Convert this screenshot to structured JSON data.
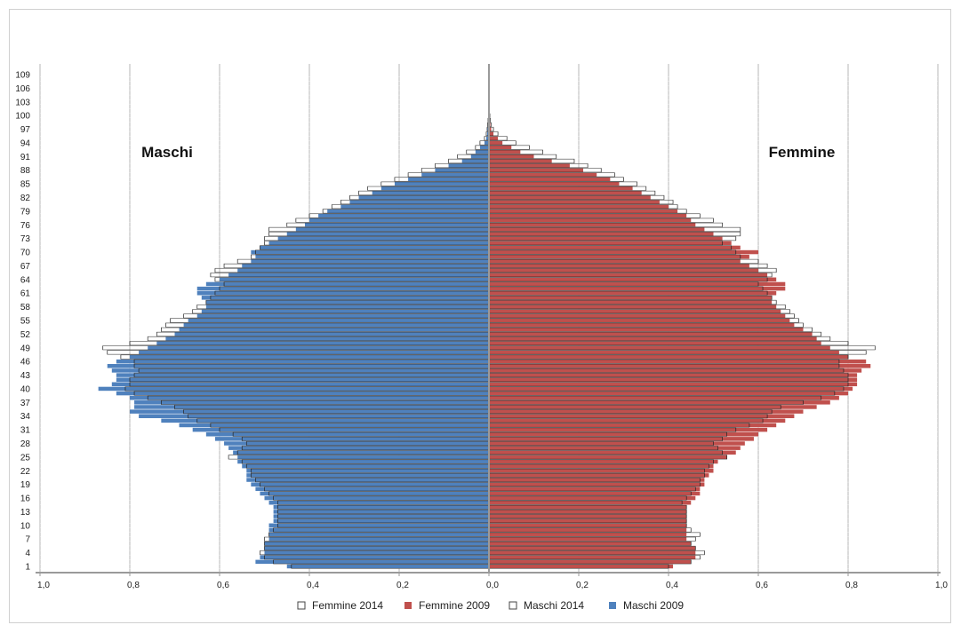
{
  "chart_data": {
    "type": "bar",
    "orientation": "horizontal",
    "subtype": "population-pyramid",
    "left_label": "Maschi",
    "right_label": "Femmine",
    "ages": [
      1,
      2,
      3,
      4,
      5,
      6,
      7,
      8,
      9,
      10,
      11,
      12,
      13,
      14,
      15,
      16,
      17,
      18,
      19,
      20,
      21,
      22,
      23,
      24,
      25,
      26,
      27,
      28,
      29,
      30,
      31,
      32,
      33,
      34,
      35,
      36,
      37,
      38,
      39,
      40,
      41,
      42,
      43,
      44,
      45,
      46,
      47,
      48,
      49,
      50,
      51,
      52,
      53,
      54,
      55,
      56,
      57,
      58,
      59,
      60,
      61,
      62,
      63,
      64,
      65,
      66,
      67,
      68,
      69,
      70,
      71,
      72,
      73,
      74,
      75,
      76,
      77,
      78,
      79,
      80,
      81,
      82,
      83,
      84,
      85,
      86,
      87,
      88,
      89,
      90,
      91,
      92,
      93,
      94,
      95,
      96,
      97,
      98,
      99,
      100,
      101,
      102,
      103,
      104,
      105,
      106,
      107,
      108,
      109
    ],
    "y_tick_labels": [
      "1",
      "4",
      "7",
      "10",
      "13",
      "16",
      "19",
      "22",
      "25",
      "28",
      "31",
      "34",
      "37",
      "40",
      "43",
      "46",
      "49",
      "52",
      "55",
      "58",
      "61",
      "64",
      "67",
      "70",
      "73",
      "76",
      "79",
      "82",
      "85",
      "88",
      "91",
      "94",
      "97",
      "100",
      "103",
      "106",
      "109"
    ],
    "x_tick_labels": [
      "1,0",
      "0,8",
      "0,6",
      "0,4",
      "0,2",
      "0,0",
      "0,2",
      "0,4",
      "0,6",
      "0,8",
      "1,0"
    ],
    "xlim": [
      -1.0,
      1.0
    ],
    "series": [
      {
        "name": "Femmine 2014",
        "side": "right",
        "style": "outline",
        "values": [
          0.4,
          0.45,
          0.47,
          0.48,
          0.46,
          0.45,
          0.46,
          0.47,
          0.45,
          0.44,
          0.44,
          0.44,
          0.44,
          0.44,
          0.43,
          0.44,
          0.45,
          0.46,
          0.47,
          0.47,
          0.48,
          0.48,
          0.49,
          0.5,
          0.53,
          0.52,
          0.51,
          0.5,
          0.52,
          0.53,
          0.55,
          0.58,
          0.61,
          0.62,
          0.63,
          0.65,
          0.7,
          0.74,
          0.77,
          0.79,
          0.8,
          0.8,
          0.8,
          0.79,
          0.78,
          0.78,
          0.8,
          0.84,
          0.86,
          0.8,
          0.76,
          0.74,
          0.72,
          0.7,
          0.69,
          0.68,
          0.67,
          0.66,
          0.64,
          0.63,
          0.62,
          0.61,
          0.6,
          0.62,
          0.63,
          0.64,
          0.62,
          0.6,
          0.56,
          0.55,
          0.54,
          0.52,
          0.55,
          0.56,
          0.56,
          0.52,
          0.5,
          0.47,
          0.44,
          0.42,
          0.41,
          0.39,
          0.37,
          0.35,
          0.33,
          0.3,
          0.28,
          0.25,
          0.22,
          0.19,
          0.15,
          0.12,
          0.09,
          0.06,
          0.04,
          0.02,
          0.01,
          0.005,
          0.003,
          0.002,
          0.001,
          0.001,
          0.0,
          0.0,
          0.0,
          0.0,
          0.0,
          0.0,
          0.0
        ]
      },
      {
        "name": "Femmine 2009",
        "side": "right",
        "style": "fill",
        "color": "#c0504d",
        "values": [
          0.41,
          0.45,
          0.46,
          0.46,
          0.46,
          0.45,
          0.44,
          0.44,
          0.44,
          0.44,
          0.44,
          0.44,
          0.44,
          0.44,
          0.45,
          0.46,
          0.47,
          0.47,
          0.48,
          0.48,
          0.49,
          0.5,
          0.5,
          0.51,
          0.53,
          0.55,
          0.56,
          0.57,
          0.59,
          0.6,
          0.62,
          0.64,
          0.66,
          0.68,
          0.7,
          0.73,
          0.76,
          0.78,
          0.8,
          0.81,
          0.82,
          0.82,
          0.82,
          0.83,
          0.85,
          0.84,
          0.8,
          0.78,
          0.76,
          0.74,
          0.73,
          0.72,
          0.7,
          0.68,
          0.67,
          0.66,
          0.65,
          0.64,
          0.63,
          0.63,
          0.64,
          0.66,
          0.66,
          0.64,
          0.62,
          0.6,
          0.58,
          0.56,
          0.58,
          0.6,
          0.56,
          0.54,
          0.52,
          0.5,
          0.48,
          0.46,
          0.45,
          0.44,
          0.42,
          0.4,
          0.38,
          0.36,
          0.34,
          0.32,
          0.29,
          0.27,
          0.24,
          0.21,
          0.18,
          0.14,
          0.1,
          0.07,
          0.05,
          0.03,
          0.02,
          0.01,
          0.005,
          0.003,
          0.002,
          0.001,
          0.001,
          0.0,
          0.0,
          0.0,
          0.0,
          0.0,
          0.0,
          0.0,
          0.0
        ]
      },
      {
        "name": "Maschi 2014",
        "side": "left",
        "style": "outline",
        "values": [
          0.44,
          0.48,
          0.5,
          0.51,
          0.5,
          0.5,
          0.5,
          0.49,
          0.48,
          0.47,
          0.47,
          0.47,
          0.47,
          0.47,
          0.47,
          0.48,
          0.49,
          0.5,
          0.51,
          0.52,
          0.53,
          0.53,
          0.54,
          0.55,
          0.58,
          0.56,
          0.55,
          0.54,
          0.55,
          0.57,
          0.6,
          0.62,
          0.65,
          0.67,
          0.68,
          0.7,
          0.73,
          0.76,
          0.79,
          0.81,
          0.8,
          0.8,
          0.79,
          0.78,
          0.79,
          0.79,
          0.82,
          0.85,
          0.86,
          0.8,
          0.76,
          0.74,
          0.73,
          0.72,
          0.71,
          0.68,
          0.66,
          0.65,
          0.63,
          0.62,
          0.61,
          0.6,
          0.59,
          0.61,
          0.62,
          0.61,
          0.59,
          0.56,
          0.53,
          0.52,
          0.51,
          0.5,
          0.5,
          0.49,
          0.49,
          0.45,
          0.43,
          0.4,
          0.37,
          0.35,
          0.33,
          0.31,
          0.29,
          0.27,
          0.24,
          0.21,
          0.18,
          0.15,
          0.12,
          0.09,
          0.07,
          0.05,
          0.03,
          0.02,
          0.01,
          0.006,
          0.004,
          0.003,
          0.002,
          0.001,
          0.001,
          0.0,
          0.0,
          0.0,
          0.0,
          0.0,
          0.0,
          0.0,
          0.0
        ]
      },
      {
        "name": "Maschi 2009",
        "side": "left",
        "style": "fill",
        "color": "#4f81bd",
        "values": [
          0.45,
          0.52,
          0.51,
          0.5,
          0.5,
          0.5,
          0.49,
          0.49,
          0.49,
          0.49,
          0.48,
          0.48,
          0.48,
          0.48,
          0.49,
          0.5,
          0.51,
          0.52,
          0.53,
          0.54,
          0.54,
          0.54,
          0.55,
          0.56,
          0.56,
          0.57,
          0.58,
          0.59,
          0.61,
          0.63,
          0.66,
          0.69,
          0.73,
          0.78,
          0.8,
          0.79,
          0.79,
          0.8,
          0.83,
          0.87,
          0.84,
          0.83,
          0.83,
          0.84,
          0.85,
          0.83,
          0.8,
          0.78,
          0.76,
          0.74,
          0.72,
          0.7,
          0.69,
          0.68,
          0.67,
          0.65,
          0.64,
          0.63,
          0.63,
          0.64,
          0.65,
          0.65,
          0.63,
          0.6,
          0.58,
          0.56,
          0.55,
          0.53,
          0.52,
          0.53,
          0.51,
          0.49,
          0.47,
          0.45,
          0.43,
          0.41,
          0.4,
          0.38,
          0.36,
          0.33,
          0.31,
          0.29,
          0.26,
          0.24,
          0.21,
          0.18,
          0.15,
          0.12,
          0.09,
          0.06,
          0.04,
          0.03,
          0.02,
          0.01,
          0.006,
          0.004,
          0.003,
          0.002,
          0.001,
          0.001,
          0.0,
          0.0,
          0.0,
          0.0,
          0.0,
          0.0,
          0.0,
          0.0,
          0.0
        ]
      }
    ],
    "legend": {
      "placement": "bottom",
      "entries": [
        {
          "label": "Femmine 2014",
          "swatch": "outline"
        },
        {
          "label": "Femmine 2009",
          "swatch": "#c0504d"
        },
        {
          "label": "Maschi 2014",
          "swatch": "outline"
        },
        {
          "label": "Maschi 2009",
          "swatch": "#4f81bd"
        }
      ]
    },
    "grid": true
  }
}
